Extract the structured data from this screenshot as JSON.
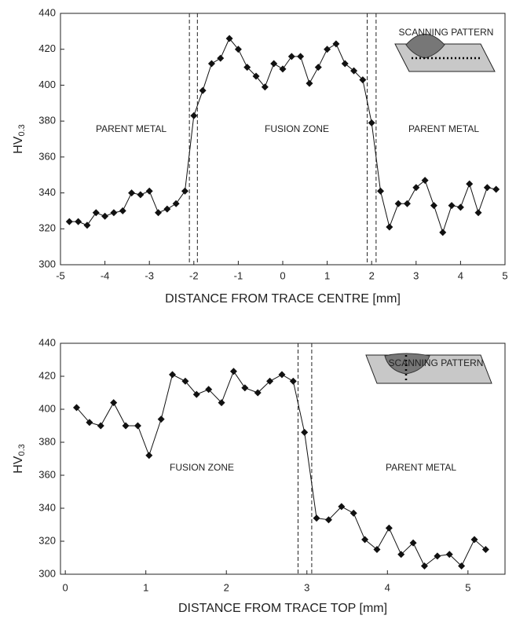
{
  "chart_data": [
    {
      "type": "line",
      "xlabel": "DISTANCE FROM TRACE CENTRE [mm]",
      "ylabel": {
        "text": "HV",
        "subscript": "0.3"
      },
      "x": [
        -4.8,
        -4.6,
        -4.4,
        -4.2,
        -4.0,
        -3.8,
        -3.6,
        -3.4,
        -3.2,
        -3.0,
        -2.8,
        -2.6,
        -2.4,
        -2.2,
        -2.0,
        -1.8,
        -1.6,
        -1.4,
        -1.2,
        -1.0,
        -0.8,
        -0.6,
        -0.4,
        -0.2,
        0.0,
        0.2,
        0.4,
        0.6,
        0.8,
        1.0,
        1.2,
        1.4,
        1.6,
        1.8,
        2.0,
        2.2,
        2.4,
        2.6,
        2.8,
        3.0,
        3.2,
        3.4,
        3.6,
        3.8,
        4.0,
        4.2,
        4.4,
        4.6,
        4.8
      ],
      "values": [
        324,
        324,
        322,
        329,
        327,
        329,
        330,
        340,
        339,
        341,
        329,
        331,
        334,
        341,
        383,
        397,
        412,
        415,
        426,
        420,
        410,
        405,
        399,
        412,
        409,
        416,
        416,
        401,
        410,
        420,
        423,
        412,
        408,
        403,
        379,
        341,
        321,
        334,
        334,
        343,
        347,
        333,
        318,
        333,
        332,
        345,
        329,
        343,
        342
      ],
      "color": "#111111",
      "xlim": [
        -5,
        5
      ],
      "xticks": [
        -5,
        -4,
        -3,
        -2,
        -1,
        0,
        1,
        2,
        3,
        4,
        5
      ],
      "ylim": [
        300,
        440
      ],
      "yticks": [
        300,
        320,
        340,
        360,
        380,
        400,
        420,
        440
      ],
      "vlines": [
        -2.1,
        -1.92,
        1.9,
        2.1
      ],
      "annotations": [
        "PARENT METAL",
        "FUSION ZONE",
        "PARENT METAL",
        "SCANNING PATTERN"
      ]
    },
    {
      "type": "line",
      "xlabel": "DISTANCE FROM TRACE TOP [mm]",
      "ylabel": {
        "text": "HV",
        "subscript": "0.3"
      },
      "x": [
        0.14,
        0.3,
        0.44,
        0.6,
        0.75,
        0.9,
        1.04,
        1.19,
        1.33,
        1.49,
        1.63,
        1.78,
        1.94,
        2.09,
        2.23,
        2.39,
        2.54,
        2.69,
        2.83,
        2.97,
        3.12,
        3.27,
        3.43,
        3.58,
        3.72,
        3.87,
        4.02,
        4.17,
        4.32,
        4.46,
        4.62,
        4.77,
        4.92,
        5.08,
        5.22
      ],
      "values": [
        401,
        392,
        390,
        404,
        390,
        390,
        372,
        394,
        421,
        417,
        409,
        412,
        404,
        423,
        413,
        410,
        417,
        421,
        417,
        386,
        334,
        333,
        341,
        337,
        321,
        315,
        328,
        312,
        319,
        305,
        311,
        312,
        305,
        321,
        315
      ],
      "color": "#111111",
      "xlim": [
        -0.06,
        5.46
      ],
      "xticks": [
        0,
        1,
        2,
        3,
        4,
        5
      ],
      "ylim": [
        300,
        440
      ],
      "yticks": [
        300,
        320,
        340,
        360,
        380,
        400,
        420,
        440
      ],
      "vlines": [
        2.89,
        3.06
      ],
      "annotations": [
        "FUSION ZONE",
        "PARENT METAL",
        "SCANNING PATTERN"
      ]
    }
  ]
}
